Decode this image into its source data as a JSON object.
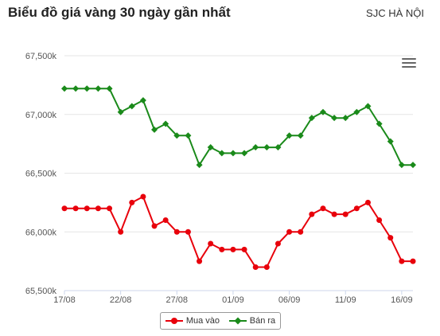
{
  "header": {
    "title": "Biểu đồ giá vàng 30 ngày gần nhất",
    "location": "SJC HÀ NỘI"
  },
  "icons": {
    "menu": "hamburger-menu-icon"
  },
  "chart_data": {
    "type": "line",
    "title": "Biểu đồ giá vàng 30 ngày gần nhất",
    "xlabel": "",
    "ylabel": "",
    "ylim": [
      65500,
      67500
    ],
    "y_ticks": [
      65500,
      66000,
      66500,
      67000,
      67500
    ],
    "y_tick_labels": [
      "65,500k",
      "66,000k",
      "66,500k",
      "67,000k",
      "67,500k"
    ],
    "x_tick_labels": [
      {
        "index": 0,
        "label": "17/08"
      },
      {
        "index": 5,
        "label": "22/08"
      },
      {
        "index": 10,
        "label": "27/08"
      },
      {
        "index": 15,
        "label": "01/09"
      },
      {
        "index": 20,
        "label": "06/09"
      },
      {
        "index": 25,
        "label": "11/09"
      },
      {
        "index": 30,
        "label": "16/09"
      }
    ],
    "grid": true,
    "legend_position": "bottom-center",
    "series": [
      {
        "name": "Mua vào",
        "color": "#e8000b",
        "values": [
          66200,
          66200,
          66200,
          66200,
          66200,
          66000,
          66250,
          66300,
          66050,
          66100,
          66000,
          66000,
          65750,
          65900,
          65850,
          65850,
          65850,
          65700,
          65700,
          65900,
          66000,
          66000,
          66150,
          66200,
          66150,
          66150,
          66200,
          66250,
          66100,
          65950,
          65750,
          65750
        ]
      },
      {
        "name": "Bán ra",
        "color": "#1a8a1a",
        "values": [
          67220,
          67220,
          67220,
          67220,
          67220,
          67020,
          67070,
          67120,
          66870,
          66920,
          66820,
          66820,
          66570,
          66720,
          66670,
          66670,
          66670,
          66720,
          66720,
          66720,
          66820,
          66820,
          66970,
          67020,
          66970,
          66970,
          67020,
          67070,
          66920,
          66770,
          66570,
          66570
        ]
      }
    ]
  }
}
